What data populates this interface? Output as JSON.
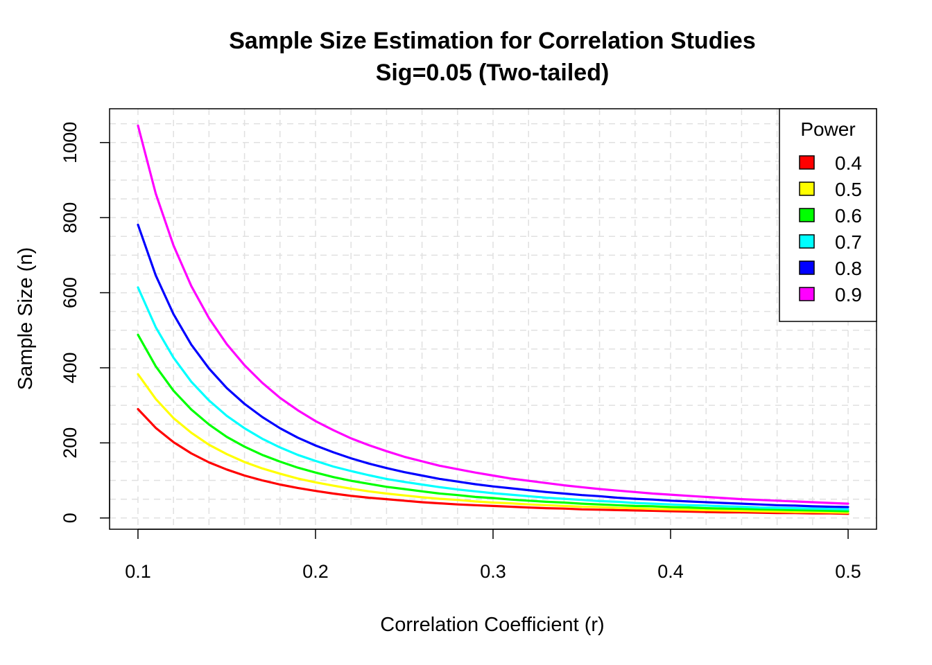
{
  "chart_data": {
    "type": "line",
    "title": "Sample Size Estimation for Correlation Studies",
    "subtitle": "Sig=0.05 (Two-tailed)",
    "xlabel": "Correlation Coefficient (r)",
    "ylabel": "Sample Size (n)",
    "xlim": [
      0.084,
      0.516
    ],
    "ylim": [
      -30,
      1090
    ],
    "x_ticks": [
      0.1,
      0.2,
      0.3,
      0.4,
      0.5
    ],
    "x_tick_labels": [
      "0.1",
      "0.2",
      "0.3",
      "0.4",
      "0.5"
    ],
    "y_ticks": [
      0,
      200,
      400,
      600,
      800,
      1000
    ],
    "y_tick_labels": [
      "0",
      "200",
      "400",
      "600",
      "800",
      "1000"
    ],
    "grid": true,
    "legend": {
      "title": "Power",
      "position": "top-right"
    },
    "x": [
      0.1,
      0.11,
      0.12,
      0.13,
      0.14,
      0.15,
      0.16,
      0.17,
      0.18,
      0.19,
      0.2,
      0.21,
      0.22,
      0.23,
      0.24,
      0.25,
      0.26,
      0.27,
      0.28,
      0.29,
      0.3,
      0.31,
      0.32,
      0.33,
      0.34,
      0.35,
      0.36,
      0.37,
      0.38,
      0.39,
      0.4,
      0.41,
      0.42,
      0.43,
      0.44,
      0.45,
      0.46,
      0.47,
      0.48,
      0.49,
      0.5
    ],
    "series": [
      {
        "name": "0.4",
        "color": "#ff0000",
        "values": [
          290,
          240,
          202,
          172,
          148,
          129,
          113,
          100,
          89,
          80,
          72,
          65,
          59,
          54,
          50,
          46,
          42,
          39,
          36,
          34,
          32,
          30,
          28,
          26,
          25,
          23,
          22,
          21,
          20,
          19,
          18,
          17,
          16,
          15,
          15,
          14,
          13,
          13,
          12,
          12,
          11
        ]
      },
      {
        "name": "0.5",
        "color": "#ffff00",
        "values": [
          383,
          317,
          266,
          227,
          195,
          170,
          149,
          132,
          118,
          105,
          95,
          86,
          78,
          71,
          65,
          60,
          55,
          51,
          48,
          44,
          41,
          39,
          36,
          34,
          32,
          30,
          29,
          27,
          26,
          24,
          23,
          22,
          21,
          20,
          19,
          18,
          17,
          16,
          16,
          15,
          14
        ]
      },
      {
        "name": "0.6",
        "color": "#00ff00",
        "values": [
          488,
          404,
          339,
          289,
          249,
          216,
          190,
          168,
          150,
          134,
          121,
          109,
          99,
          91,
          83,
          77,
          71,
          65,
          61,
          56,
          53,
          49,
          46,
          43,
          41,
          38,
          36,
          34,
          32,
          31,
          29,
          28,
          26,
          25,
          24,
          23,
          22,
          21,
          20,
          19,
          18
        ]
      },
      {
        "name": "0.7",
        "color": "#00ffff",
        "values": [
          614,
          508,
          427,
          363,
          313,
          272,
          239,
          211,
          188,
          168,
          152,
          137,
          125,
          114,
          104,
          96,
          89,
          82,
          76,
          71,
          66,
          62,
          58,
          54,
          51,
          48,
          45,
          43,
          40,
          38,
          36,
          34,
          33,
          31,
          30,
          28,
          27,
          26,
          25,
          24,
          23
        ]
      },
      {
        "name": "0.8",
        "color": "#0000ff",
        "values": [
          781,
          646,
          543,
          462,
          398,
          346,
          304,
          269,
          239,
          214,
          193,
          175,
          159,
          145,
          133,
          122,
          113,
          104,
          97,
          90,
          84,
          79,
          74,
          69,
          65,
          61,
          58,
          54,
          51,
          49,
          46,
          44,
          42,
          40,
          38,
          36,
          34,
          33,
          31,
          30,
          29
        ]
      },
      {
        "name": "0.9",
        "color": "#ff00ff",
        "values": [
          1045,
          864,
          726,
          618,
          532,
          463,
          407,
          360,
          320,
          287,
          258,
          234,
          212,
          194,
          178,
          163,
          151,
          139,
          130,
          121,
          113,
          105,
          99,
          93,
          87,
          82,
          77,
          73,
          69,
          65,
          62,
          59,
          56,
          53,
          50,
          48,
          46,
          44,
          42,
          40,
          38
        ]
      }
    ]
  }
}
